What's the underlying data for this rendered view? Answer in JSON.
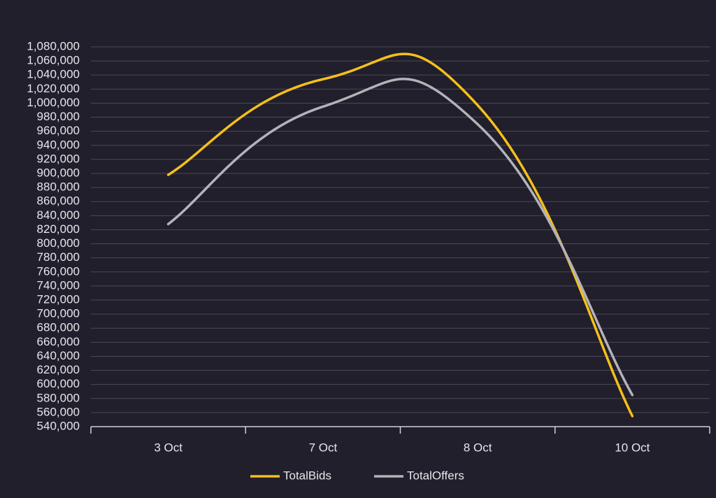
{
  "chart_data": {
    "type": "line",
    "categories": [
      "3 Oct",
      "7 Oct",
      "8 Oct",
      "10 Oct"
    ],
    "series": [
      {
        "name": "TotalBids",
        "color": "#f5bf1b",
        "values": [
          898000,
          1034000,
          997000,
          555000
        ]
      },
      {
        "name": "TotalOffers",
        "color": "#b3b3b8",
        "values": [
          828000,
          995000,
          970000,
          585000
        ]
      }
    ],
    "ylim": [
      540000,
      1080000
    ],
    "yticks": [
      {
        "value": 540000,
        "label": "540,000"
      },
      {
        "value": 560000,
        "label": "560,000"
      },
      {
        "value": 580000,
        "label": "580,000"
      },
      {
        "value": 600000,
        "label": "600,000"
      },
      {
        "value": 620000,
        "label": "620,000"
      },
      {
        "value": 640000,
        "label": "640,000"
      },
      {
        "value": 660000,
        "label": "660,000"
      },
      {
        "value": 680000,
        "label": "680,000"
      },
      {
        "value": 700000,
        "label": "700,000"
      },
      {
        "value": 720000,
        "label": "720,000"
      },
      {
        "value": 740000,
        "label": "740,000"
      },
      {
        "value": 760000,
        "label": "760,000"
      },
      {
        "value": 780000,
        "label": "780,000"
      },
      {
        "value": 800000,
        "label": "800,000"
      },
      {
        "value": 820000,
        "label": "820,000"
      },
      {
        "value": 840000,
        "label": "840,000"
      },
      {
        "value": 860000,
        "label": "860,000"
      },
      {
        "value": 880000,
        "label": "880,000"
      },
      {
        "value": 900000,
        "label": "900,000"
      },
      {
        "value": 920000,
        "label": "920,000"
      },
      {
        "value": 940000,
        "label": "940,000"
      },
      {
        "value": 960000,
        "label": "960,000"
      },
      {
        "value": 980000,
        "label": "980,000"
      },
      {
        "value": 1000000,
        "label": "1,000,000"
      },
      {
        "value": 1020000,
        "label": "1,020,000"
      },
      {
        "value": 1040000,
        "label": "1,040,000"
      },
      {
        "value": 1060000,
        "label": "1,060,000"
      },
      {
        "value": 1080000,
        "label": "1,080,000"
      }
    ],
    "grid": true,
    "legend": "bottom"
  }
}
